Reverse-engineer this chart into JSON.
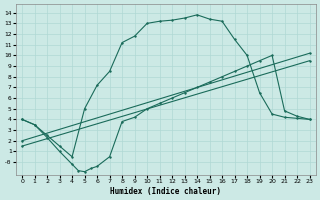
{
  "xlabel": "Humidex (Indice chaleur)",
  "xlim": [
    -0.5,
    23.5
  ],
  "ylim": [
    -1.2,
    14.8
  ],
  "xticks": [
    0,
    1,
    2,
    3,
    4,
    5,
    6,
    7,
    8,
    9,
    10,
    11,
    12,
    13,
    14,
    15,
    16,
    17,
    18,
    19,
    20,
    21,
    22,
    23
  ],
  "yticks": [
    0,
    1,
    2,
    3,
    4,
    5,
    6,
    7,
    8,
    9,
    10,
    11,
    12,
    13,
    14
  ],
  "ytick_labels": [
    "-0",
    "1",
    "2",
    "3",
    "4",
    "5",
    "6",
    "7",
    "8",
    "9",
    "10",
    "11",
    "12",
    "13",
    "14"
  ],
  "bg_color": "#cce9e5",
  "grid_color": "#b0d8d4",
  "line_color": "#1a6b5a",
  "line1_x": [
    0,
    1,
    2,
    3,
    4,
    5,
    6,
    7,
    8,
    9,
    10,
    11,
    12,
    13,
    14,
    15,
    16,
    17,
    18,
    19,
    20,
    21,
    22,
    23
  ],
  "line1_y": [
    4.0,
    3.5,
    2.5,
    1.5,
    0.5,
    5.0,
    7.2,
    8.5,
    11.2,
    11.8,
    13.0,
    13.2,
    13.3,
    13.5,
    13.8,
    13.4,
    13.2,
    11.5,
    10.0,
    6.5,
    4.5,
    4.2,
    4.1,
    4.0
  ],
  "line2_x": [
    0,
    1,
    2,
    3,
    4,
    4.5,
    5,
    5.5,
    6,
    7,
    8,
    9,
    10,
    11,
    12,
    13,
    14,
    15,
    16,
    17,
    18,
    19,
    20,
    21,
    22,
    23
  ],
  "line2_y": [
    4.0,
    3.5,
    2.3,
    1.0,
    -0.2,
    -0.8,
    -0.9,
    -0.6,
    -0.4,
    0.5,
    3.8,
    4.2,
    5.0,
    5.5,
    6.0,
    6.5,
    7.0,
    7.5,
    8.0,
    8.5,
    9.0,
    9.5,
    10.0,
    4.8,
    4.3,
    4.0
  ],
  "line3_x": [
    0,
    23
  ],
  "line3_y": [
    1.5,
    9.5
  ],
  "line4_x": [
    0,
    23
  ],
  "line4_y": [
    2.0,
    10.2
  ]
}
